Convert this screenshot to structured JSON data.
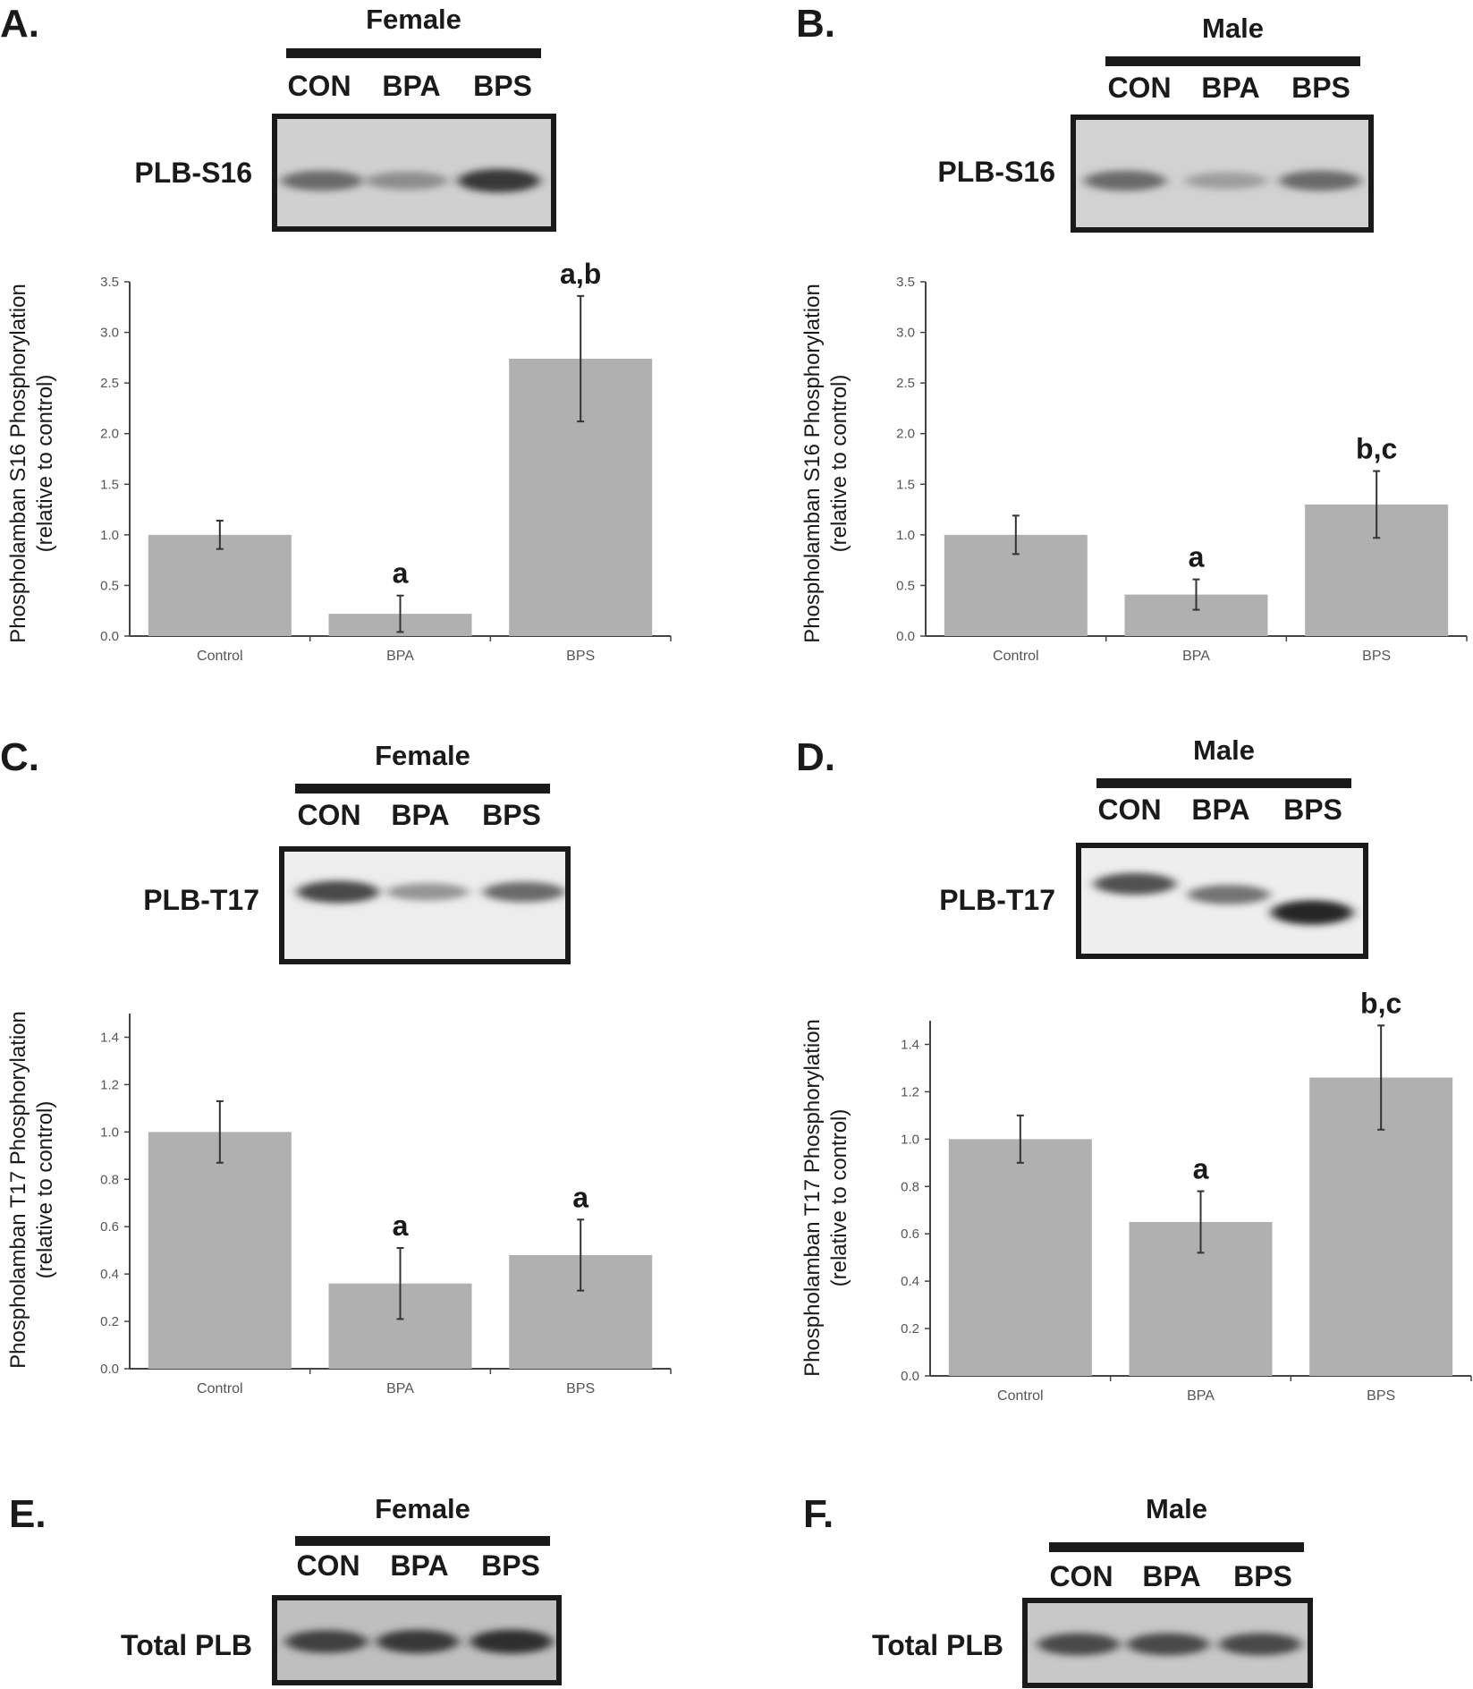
{
  "panels": [
    {
      "letter": "A.",
      "group": "Female",
      "lanes": [
        "CON",
        "BPA",
        "BPS"
      ],
      "blot_label": "PLB-S16"
    },
    {
      "letter": "B.",
      "group": "Male",
      "lanes": [
        "CON",
        "BPA",
        "BPS"
      ],
      "blot_label": "PLB-S16"
    },
    {
      "letter": "C.",
      "group": "Female",
      "lanes": [
        "CON",
        "BPA",
        "BPS"
      ],
      "blot_label": "PLB-T17"
    },
    {
      "letter": "D.",
      "group": "Male",
      "lanes": [
        "CON",
        "BPA",
        "BPS"
      ],
      "blot_label": "PLB-T17"
    },
    {
      "letter": "E.",
      "group": "Female",
      "lanes": [
        "CON",
        "BPA",
        "BPS"
      ],
      "blot_label": "Total PLB"
    },
    {
      "letter": "F.",
      "group": "Male",
      "lanes": [
        "CON",
        "BPA",
        "BPS"
      ],
      "blot_label": "Total PLB"
    }
  ],
  "blots": [
    {
      "intensities": [
        0.55,
        0.35,
        0.85
      ]
    },
    {
      "intensities": [
        0.55,
        0.25,
        0.55
      ]
    },
    {
      "intensities": [
        0.75,
        0.3,
        0.55
      ]
    },
    {
      "intensities": [
        0.7,
        0.5,
        0.95
      ]
    },
    {
      "intensities": [
        0.8,
        0.85,
        0.9
      ]
    },
    {
      "intensities": [
        0.75,
        0.75,
        0.75
      ]
    }
  ],
  "chart_data": [
    {
      "type": "bar",
      "title": "",
      "xlabel": "",
      "ylabel_line1": "Phospholamban S16 Phosphorylation",
      "ylabel_line2": "(relative to control)",
      "categories": [
        "Control",
        "BPA",
        "BPS"
      ],
      "values": [
        1.0,
        0.22,
        2.74
      ],
      "errors": [
        0.14,
        0.18,
        0.62
      ],
      "annotations": [
        "",
        "a",
        "a,b"
      ],
      "ylim": [
        0,
        3.5
      ],
      "yticks": [
        "0.0",
        "0.5",
        "1.0",
        "1.5",
        "2.0",
        "2.5",
        "3.0",
        "3.5"
      ],
      "bar_color": "#b0b0b0"
    },
    {
      "type": "bar",
      "title": "",
      "xlabel": "",
      "ylabel_line1": "Phospholamban S16 Phosphorylation",
      "ylabel_line2": "(relative to control)",
      "categories": [
        "Control",
        "BPA",
        "BPS"
      ],
      "values": [
        1.0,
        0.41,
        1.3
      ],
      "errors": [
        0.19,
        0.15,
        0.33
      ],
      "annotations": [
        "",
        "a",
        "b,c"
      ],
      "ylim": [
        0,
        3.5
      ],
      "yticks": [
        "0.0",
        "0.5",
        "1.0",
        "1.5",
        "2.0",
        "2.5",
        "3.0",
        "3.5"
      ],
      "bar_color": "#b0b0b0"
    },
    {
      "type": "bar",
      "title": "",
      "xlabel": "",
      "ylabel_line1": "Phospholamban T17 Phosphorylation",
      "ylabel_line2": "(relative to control)",
      "categories": [
        "Control",
        "BPA",
        "BPS"
      ],
      "values": [
        1.0,
        0.36,
        0.48
      ],
      "errors": [
        0.13,
        0.15,
        0.15
      ],
      "annotations": [
        "",
        "a",
        "a"
      ],
      "ylim": [
        0,
        1.5
      ],
      "yticks": [
        "0.0",
        "0.2",
        "0.4",
        "0.6",
        "0.8",
        "1.0",
        "1.2",
        "1.4"
      ],
      "bar_color": "#b0b0b0"
    },
    {
      "type": "bar",
      "title": "",
      "xlabel": "",
      "ylabel_line1": "Phospholamban T17 Phosphorylation",
      "ylabel_line2": "(relative to control)",
      "categories": [
        "Control",
        "BPA",
        "BPS"
      ],
      "values": [
        1.0,
        0.65,
        1.26
      ],
      "errors": [
        0.1,
        0.13,
        0.22
      ],
      "annotations": [
        "",
        "a",
        "b,c"
      ],
      "ylim": [
        0,
        1.5
      ],
      "yticks": [
        "0.0",
        "0.2",
        "0.4",
        "0.6",
        "0.8",
        "1.0",
        "1.2",
        "1.4"
      ],
      "bar_color": "#b0b0b0"
    }
  ]
}
